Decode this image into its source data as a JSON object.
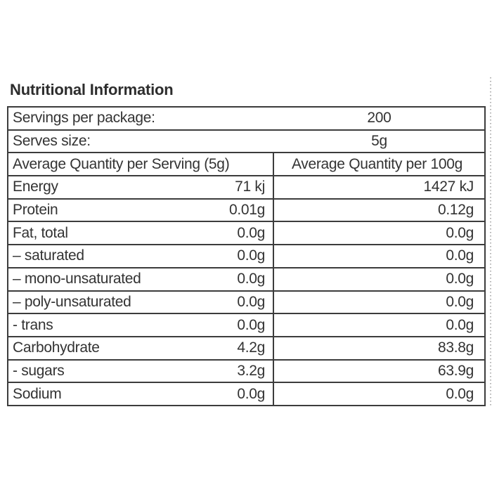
{
  "title": "Nutritional Information",
  "table": {
    "info_rows": [
      {
        "label": "Servings per package:",
        "value": "200"
      },
      {
        "label": "Serves size:",
        "value": "5g"
      }
    ],
    "header": {
      "col_serving": "Average Quantity per Serving (5g)",
      "col_100g": "Average Quantity per 100g"
    },
    "rows": [
      {
        "nutrient": "Energy",
        "per_serving": "71 kj",
        "per_100g": "1427 kJ"
      },
      {
        "nutrient": "Protein",
        "per_serving": "0.01g",
        "per_100g": "0.12g"
      },
      {
        "nutrient": "Fat, total",
        "per_serving": "0.0g",
        "per_100g": "0.0g"
      },
      {
        "nutrient": "– saturated",
        "per_serving": "0.0g",
        "per_100g": "0.0g"
      },
      {
        "nutrient": "– mono-unsaturated",
        "per_serving": "0.0g",
        "per_100g": "0.0g"
      },
      {
        "nutrient": "– poly-unsaturated",
        "per_serving": "0.0g",
        "per_100g": "0.0g"
      },
      {
        "nutrient": "- trans",
        "per_serving": "0.0g",
        "per_100g": "0.0g"
      },
      {
        "nutrient": "Carbohydrate",
        "per_serving": "4.2g",
        "per_100g": "83.8g"
      },
      {
        "nutrient": "- sugars",
        "per_serving": "3.2g",
        "per_100g": "63.9g"
      },
      {
        "nutrient": "Sodium",
        "per_serving": "0.0g",
        "per_100g": "0.0g"
      }
    ]
  },
  "colors": {
    "text": "#333333",
    "border": "#3c3c3c",
    "guide_dots": "#b3b3b3",
    "background": "#ffffff"
  }
}
